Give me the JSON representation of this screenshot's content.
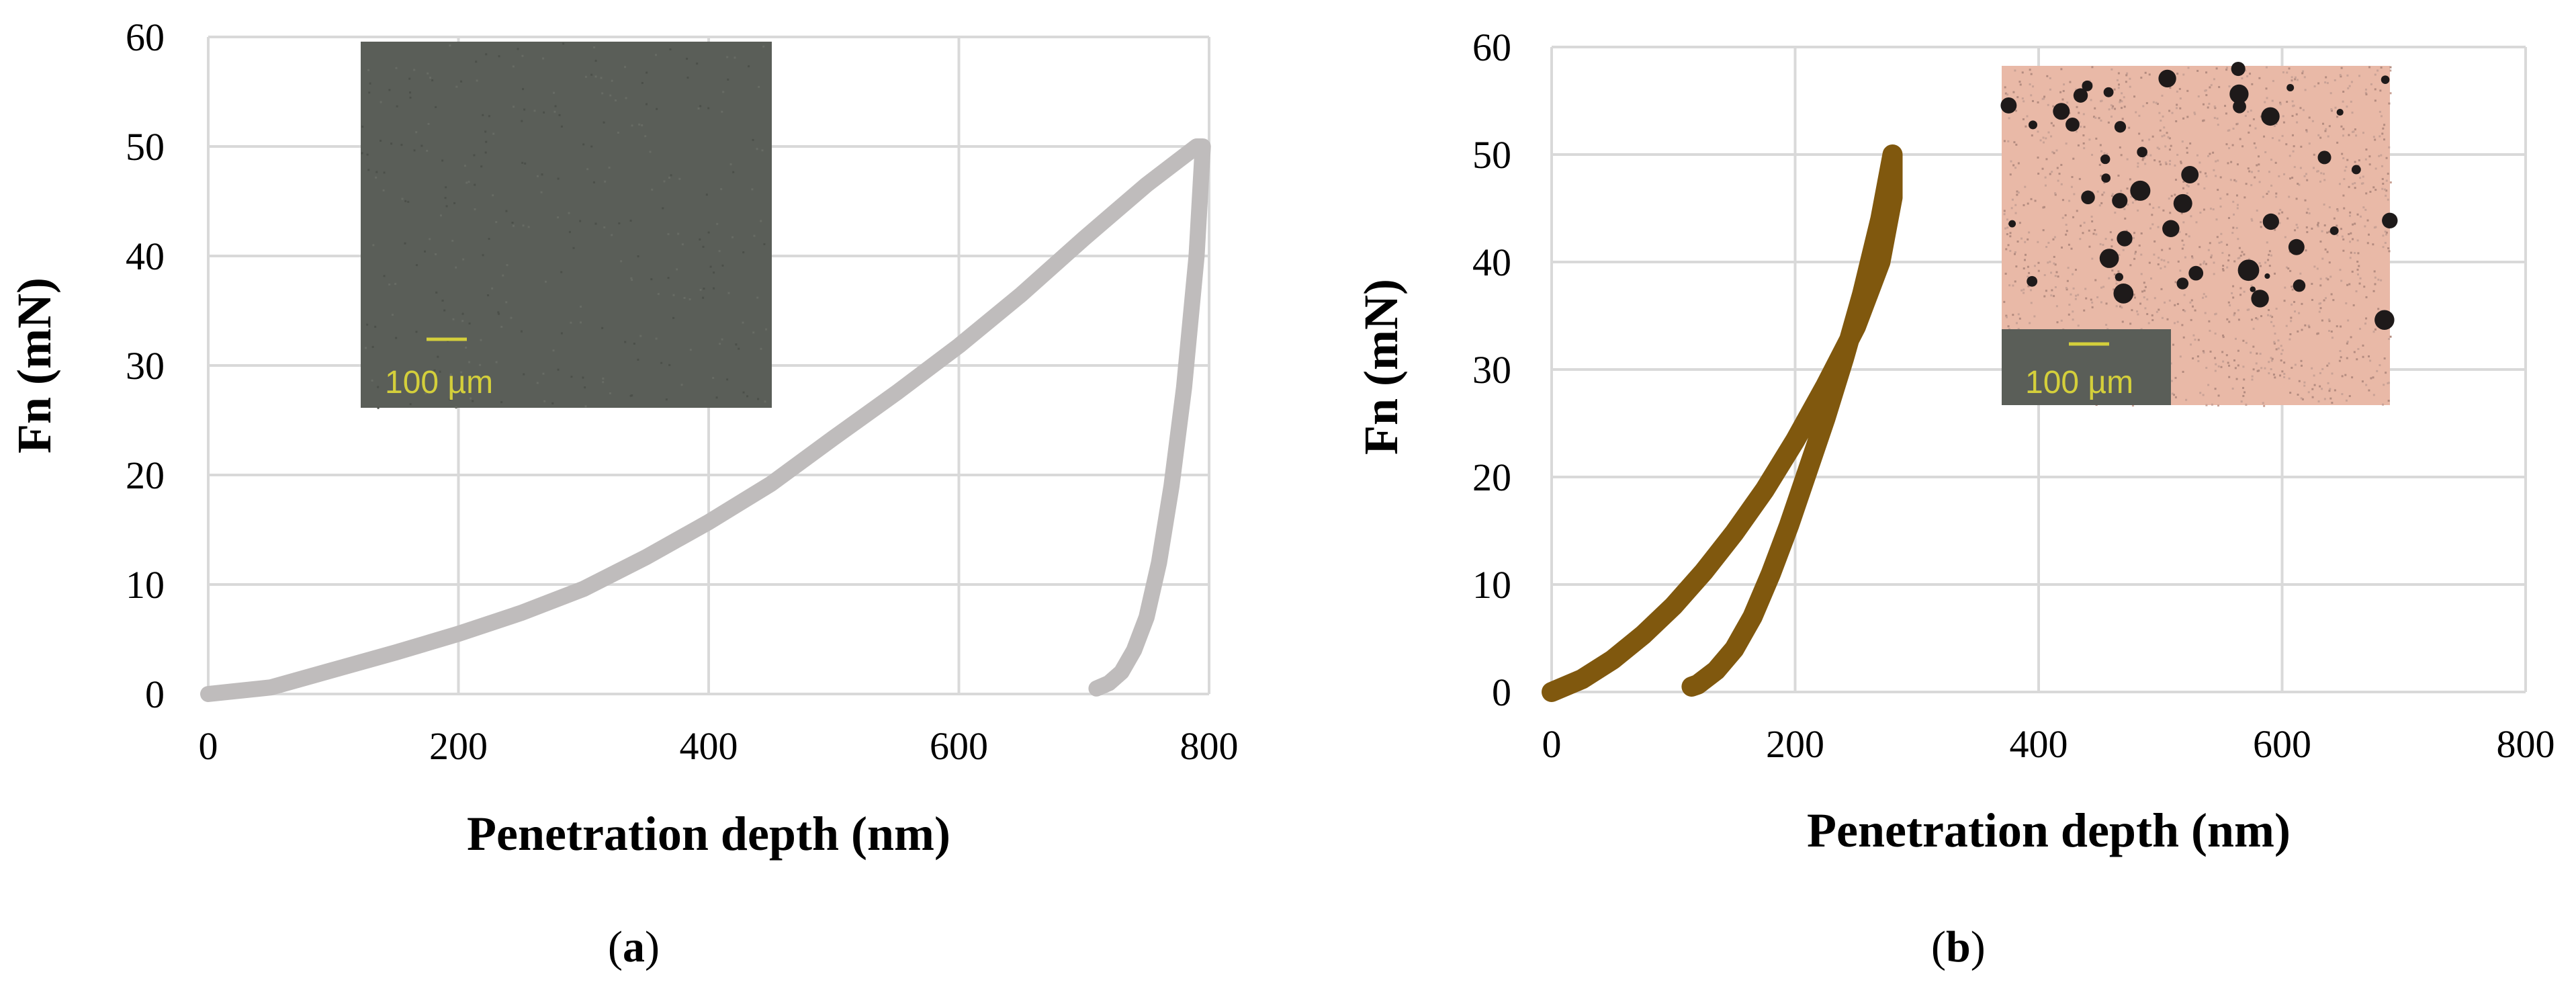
{
  "chart_data": [
    {
      "type": "line",
      "panel": "a",
      "caption_letter": "a",
      "xlabel": "Penetration depth (nm)",
      "ylabel": "Fn (mN)",
      "xlim": [
        0,
        800
      ],
      "ylim": [
        0,
        60
      ],
      "xticks": [
        0,
        200,
        400,
        600,
        800
      ],
      "yticks": [
        0,
        10,
        20,
        30,
        40,
        50,
        60
      ],
      "grid": true,
      "inset": {
        "scale_label": "100 µm",
        "style": "dark-gray micrograph"
      },
      "series": [
        {
          "color": "#bfbcbc",
          "x": [
            0,
            50,
            100,
            150,
            200,
            250,
            300,
            350,
            400,
            450,
            500,
            550,
            600,
            650,
            700,
            750,
            790,
            795,
            790,
            780,
            770,
            760,
            750,
            740,
            730,
            720,
            710
          ],
          "y": [
            0,
            0.6,
            2.2,
            3.8,
            5.5,
            7.4,
            9.6,
            12.5,
            15.7,
            19.2,
            23.4,
            27.5,
            31.8,
            36.5,
            41.6,
            46.5,
            50.0,
            50.0,
            40.0,
            28.0,
            19.0,
            12.0,
            7.0,
            4.0,
            2.0,
            1.0,
            0.5
          ]
        }
      ]
    },
    {
      "type": "line",
      "panel": "b",
      "caption_letter": "b",
      "xlabel": "Penetration depth (nm)",
      "ylabel": "Fn (mN)",
      "xlim": [
        0,
        800
      ],
      "ylim": [
        0,
        60
      ],
      "xticks": [
        0,
        200,
        400,
        600,
        800
      ],
      "yticks": [
        0,
        10,
        20,
        30,
        40,
        50,
        60
      ],
      "grid": true,
      "inset": {
        "scale_label": "100 µm",
        "style": "pink micrograph with dark particles"
      },
      "series": [
        {
          "color": "#80580e",
          "x": [
            0,
            25,
            50,
            75,
            100,
            125,
            150,
            175,
            200,
            225,
            250,
            270,
            280,
            280,
            270,
            255,
            240,
            225,
            210,
            195,
            180,
            165,
            150,
            135,
            120,
            115
          ],
          "y": [
            0,
            1.2,
            3.0,
            5.3,
            8.0,
            11.2,
            14.8,
            18.8,
            23.4,
            28.5,
            34.0,
            40.0,
            46.0,
            50.0,
            44.0,
            37.0,
            31.0,
            25.5,
            20.5,
            15.5,
            11.0,
            7.0,
            4.0,
            2.0,
            0.7,
            0.5
          ]
        }
      ]
    }
  ]
}
